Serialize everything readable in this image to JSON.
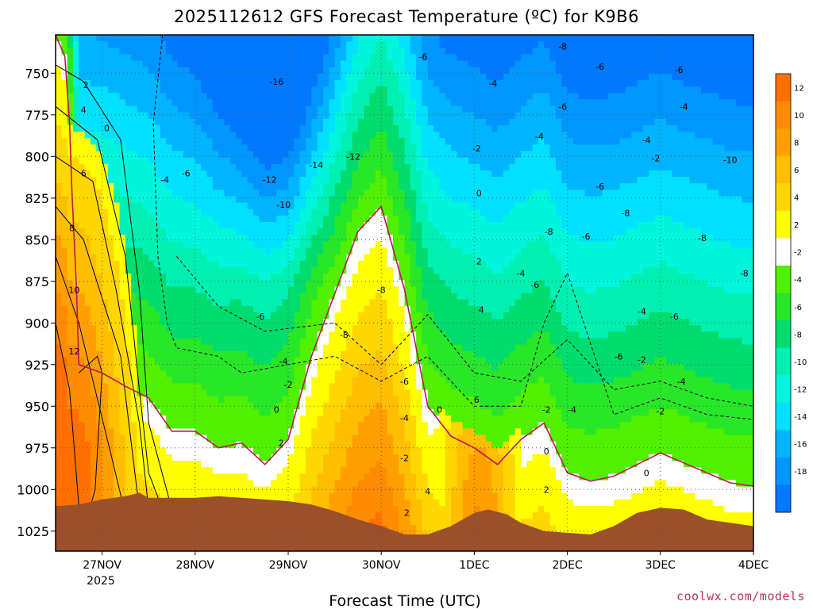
{
  "chart_data": {
    "type": "heatmap",
    "title": "2025112612 GFS Forecast Temperature (ºC) for K9B6",
    "xlabel": "Forecast Time (UTC)",
    "ylabel": "",
    "credit": "coolwx.com/models",
    "x_ticks": [
      "27NOV",
      "28NOV",
      "29NOV",
      "30NOV",
      "1DEC",
      "2DEC",
      "3DEC",
      "4DEC"
    ],
    "x_year_label": "2025",
    "y_ticks": [
      750,
      775,
      800,
      825,
      850,
      875,
      900,
      925,
      950,
      975,
      1000,
      1025
    ],
    "ylim": [
      1037,
      727
    ],
    "xlim": [
      "26NOV12",
      "4DEC00"
    ],
    "y_units": "hPa",
    "y_inverted": true,
    "grid": true,
    "colorbar": {
      "placement": "right",
      "ticks": [
        12,
        10,
        8,
        6,
        4,
        2,
        -2,
        -4,
        -6,
        -8,
        -10,
        -12,
        -14,
        -16,
        -18
      ],
      "bins": [
        {
          "range": [
            12,
            14
          ],
          "color": "#ff7000"
        },
        {
          "range": [
            10,
            12
          ],
          "color": "#ff8c00"
        },
        {
          "range": [
            8,
            10
          ],
          "color": "#ffa000"
        },
        {
          "range": [
            6,
            8
          ],
          "color": "#ffbe00"
        },
        {
          "range": [
            4,
            6
          ],
          "color": "#ffd700"
        },
        {
          "range": [
            2,
            4
          ],
          "color": "#ffff00"
        },
        {
          "range": [
            -2,
            2
          ],
          "color": "#ffffff"
        },
        {
          "range": [
            -4,
            -2
          ],
          "color": "#50f000"
        },
        {
          "range": [
            -6,
            -4
          ],
          "color": "#28e628"
        },
        {
          "range": [
            -8,
            -6
          ],
          "color": "#00dc6e"
        },
        {
          "range": [
            -10,
            -8
          ],
          "color": "#00f0b4"
        },
        {
          "range": [
            -12,
            -10
          ],
          "color": "#00f5dc"
        },
        {
          "range": [
            -14,
            -12
          ],
          "color": "#00e1ff"
        },
        {
          "range": [
            -16,
            -14
          ],
          "color": "#00b4ff"
        },
        {
          "range": [
            -18,
            -16
          ],
          "color": "#0096ff"
        },
        {
          "range": [
            -20,
            -18
          ],
          "color": "#0078ff"
        }
      ]
    },
    "terrain_color": "#9b4f2b",
    "zero_contour_color": "#c0145a",
    "zero_line_pressure": [
      [
        0,
        727
      ],
      [
        0.2,
        740
      ],
      [
        0.3,
        780
      ],
      [
        0.35,
        820
      ],
      [
        0.45,
        880
      ],
      [
        0.5,
        925
      ],
      [
        1,
        930
      ],
      [
        1.5,
        938
      ],
      [
        2,
        945
      ],
      [
        2.5,
        965
      ],
      [
        3,
        965
      ],
      [
        3.5,
        975
      ],
      [
        4,
        972
      ],
      [
        4.5,
        985
      ],
      [
        5,
        970
      ],
      [
        5.5,
        920
      ],
      [
        6.5,
        845
      ],
      [
        7.0,
        830
      ],
      [
        7.5,
        880
      ],
      [
        8,
        950
      ],
      [
        8.5,
        968
      ],
      [
        9,
        975
      ],
      [
        9.5,
        985
      ],
      [
        10,
        970
      ],
      [
        10.5,
        960
      ],
      [
        11,
        990
      ],
      [
        11.5,
        995
      ],
      [
        12,
        992
      ],
      [
        12.5,
        985
      ],
      [
        13,
        978
      ],
      [
        14,
        990
      ],
      [
        14.5,
        996
      ],
      [
        15,
        998
      ]
    ],
    "contour_lines": [
      {
        "value": 12,
        "points": [
          [
            0,
            900
          ],
          [
            0.3,
            940
          ],
          [
            0.5,
            1010
          ],
          [
            0.7,
            1015
          ],
          [
            0.85,
            1000
          ],
          [
            1.0,
            930
          ],
          [
            0.9,
            920
          ],
          [
            0.5,
            930
          ]
        ]
      },
      {
        "value": 10,
        "points": [
          [
            0,
            860
          ],
          [
            0.5,
            900
          ],
          [
            1.2,
            980
          ],
          [
            1.5,
            1015
          ]
        ]
      },
      {
        "value": 8,
        "points": [
          [
            0,
            830
          ],
          [
            0.6,
            850
          ],
          [
            1.4,
            920
          ],
          [
            1.8,
            1012
          ]
        ]
      },
      {
        "value": 6,
        "points": [
          [
            0,
            800
          ],
          [
            0.8,
            815
          ],
          [
            1.3,
            880
          ],
          [
            1.8,
            960
          ],
          [
            2.0,
            1012
          ]
        ]
      },
      {
        "value": 4,
        "points": [
          [
            0,
            770
          ],
          [
            0.9,
            790
          ],
          [
            1.5,
            860
          ],
          [
            1.8,
            940
          ],
          [
            2.0,
            990
          ],
          [
            2.3,
            1012
          ]
        ]
      },
      {
        "value": 2,
        "points": [
          [
            0,
            745
          ],
          [
            0.6,
            755
          ],
          [
            1.4,
            790
          ],
          [
            1.8,
            880
          ],
          [
            2.0,
            960
          ],
          [
            2.5,
            1012
          ]
        ]
      },
      {
        "value": -2,
        "points": [
          [
            2.3,
            727
          ],
          [
            2.1,
            780
          ],
          [
            2.2,
            860
          ],
          [
            2.4,
            900
          ],
          [
            2.6,
            915
          ],
          [
            3.5,
            920
          ],
          [
            4,
            930
          ],
          [
            5,
            925
          ],
          [
            6,
            920
          ],
          [
            7,
            935
          ],
          [
            8,
            920
          ],
          [
            9,
            950
          ],
          [
            10,
            950
          ],
          [
            10.5,
            900
          ],
          [
            11,
            870
          ],
          [
            12,
            955
          ],
          [
            13,
            945
          ],
          [
            14,
            955
          ],
          [
            15,
            958
          ]
        ]
      },
      {
        "value": -4,
        "points": [
          [
            2.6,
            860
          ],
          [
            3.5,
            890
          ],
          [
            4.5,
            905
          ],
          [
            6,
            900
          ],
          [
            7,
            925
          ],
          [
            8,
            895
          ],
          [
            9,
            930
          ],
          [
            10,
            935
          ],
          [
            11,
            910
          ],
          [
            12,
            940
          ],
          [
            13,
            935
          ],
          [
            14,
            945
          ],
          [
            15,
            950
          ]
        ]
      }
    ],
    "contour_labels": [
      {
        "text": "2",
        "x": 0.65,
        "p": 757
      },
      {
        "text": "4",
        "x": 0.6,
        "p": 772
      },
      {
        "text": "0",
        "x": 1.1,
        "p": 783
      },
      {
        "text": "6",
        "x": 0.6,
        "p": 810
      },
      {
        "text": "8",
        "x": 0.35,
        "p": 843
      },
      {
        "text": "10",
        "x": 0.4,
        "p": 880
      },
      {
        "text": "12",
        "x": 0.4,
        "p": 917
      },
      {
        "text": "-4",
        "x": 2.35,
        "p": 814
      },
      {
        "text": "-6",
        "x": 2.8,
        "p": 810
      },
      {
        "text": "-16",
        "x": 4.75,
        "p": 755
      },
      {
        "text": "-14",
        "x": 5.6,
        "p": 805
      },
      {
        "text": "-12",
        "x": 4.6,
        "p": 814
      },
      {
        "text": "-12",
        "x": 6.4,
        "p": 800
      },
      {
        "text": "-10",
        "x": 4.9,
        "p": 829
      },
      {
        "text": "-6",
        "x": 7.9,
        "p": 740
      },
      {
        "text": "-8",
        "x": 10.9,
        "p": 734
      },
      {
        "text": "-6",
        "x": 11.7,
        "p": 746
      },
      {
        "text": "-6",
        "x": 13.4,
        "p": 748
      },
      {
        "text": "-4",
        "x": 9.4,
        "p": 756
      },
      {
        "text": "-6",
        "x": 10.9,
        "p": 770
      },
      {
        "text": "-4",
        "x": 13.5,
        "p": 770
      },
      {
        "text": "-2",
        "x": 9.05,
        "p": 795
      },
      {
        "text": "-4",
        "x": 10.4,
        "p": 788
      },
      {
        "text": "-4",
        "x": 12.7,
        "p": 790
      },
      {
        "text": "-2",
        "x": 12.9,
        "p": 801
      },
      {
        "text": "-10",
        "x": 14.5,
        "p": 802
      },
      {
        "text": "0",
        "x": 9.1,
        "p": 822
      },
      {
        "text": "-6",
        "x": 11.7,
        "p": 818
      },
      {
        "text": "-8",
        "x": 12.25,
        "p": 834
      },
      {
        "text": "-8",
        "x": 10.6,
        "p": 845
      },
      {
        "text": "-6",
        "x": 11.4,
        "p": 848
      },
      {
        "text": "-8",
        "x": 13.9,
        "p": 849
      },
      {
        "text": "2",
        "x": 9.1,
        "p": 863
      },
      {
        "text": "-4",
        "x": 10.0,
        "p": 870
      },
      {
        "text": "-6",
        "x": 10.3,
        "p": 877
      },
      {
        "text": "-8",
        "x": 14.8,
        "p": 870
      },
      {
        "text": "-8",
        "x": 7.0,
        "p": 880
      },
      {
        "text": "4",
        "x": 9.15,
        "p": 892
      },
      {
        "text": "-6",
        "x": 4.4,
        "p": 896
      },
      {
        "text": "-8",
        "x": 6.2,
        "p": 907
      },
      {
        "text": "-4",
        "x": 12.6,
        "p": 893
      },
      {
        "text": "-6",
        "x": 13.3,
        "p": 896
      },
      {
        "text": "-6",
        "x": 12.1,
        "p": 920
      },
      {
        "text": "-2",
        "x": 12.6,
        "p": 922
      },
      {
        "text": "-4",
        "x": 4.9,
        "p": 923
      },
      {
        "text": "-6",
        "x": 7.5,
        "p": 935
      },
      {
        "text": "-4",
        "x": 13.45,
        "p": 935
      },
      {
        "text": "-2",
        "x": 5.0,
        "p": 937
      },
      {
        "text": "6",
        "x": 9.05,
        "p": 946
      },
      {
        "text": "-4",
        "x": 7.5,
        "p": 957
      },
      {
        "text": "0",
        "x": 4.75,
        "p": 952
      },
      {
        "text": "0",
        "x": 8.25,
        "p": 952
      },
      {
        "text": "-2",
        "x": 10.55,
        "p": 952
      },
      {
        "text": "-4",
        "x": 11.1,
        "p": 952
      },
      {
        "text": "-2",
        "x": 13.0,
        "p": 953
      },
      {
        "text": "2",
        "x": 4.85,
        "p": 972
      },
      {
        "text": "-2",
        "x": 7.5,
        "p": 981
      },
      {
        "text": "0",
        "x": 10.55,
        "p": 977
      },
      {
        "text": "0",
        "x": 12.7,
        "p": 990
      },
      {
        "text": "4",
        "x": 8.0,
        "p": 1001
      },
      {
        "text": "2",
        "x": 10.55,
        "p": 1000
      },
      {
        "text": "2",
        "x": 7.55,
        "p": 1014
      }
    ],
    "terrain_pressure": [
      [
        0,
        1010
      ],
      [
        0.5,
        1009
      ],
      [
        1,
        1006
      ],
      [
        1.5,
        1004
      ],
      [
        1.8,
        1002
      ],
      [
        2,
        1005
      ],
      [
        3,
        1005
      ],
      [
        3.5,
        1004
      ],
      [
        4,
        1005
      ],
      [
        5,
        1007
      ],
      [
        5.5,
        1009
      ],
      [
        6,
        1013
      ],
      [
        6.5,
        1018
      ],
      [
        7,
        1022
      ],
      [
        7.5,
        1027
      ],
      [
        8,
        1027
      ],
      [
        8.5,
        1022
      ],
      [
        9,
        1014
      ],
      [
        9.3,
        1012
      ],
      [
        9.7,
        1015
      ],
      [
        10,
        1020
      ],
      [
        10.5,
        1025
      ],
      [
        11,
        1026
      ],
      [
        11.5,
        1027
      ],
      [
        12,
        1022
      ],
      [
        12.5,
        1014
      ],
      [
        13,
        1011
      ],
      [
        13.5,
        1012
      ],
      [
        14,
        1018
      ],
      [
        15,
        1022
      ]
    ],
    "x_domain": [
      0,
      15
    ],
    "notes_units": "x in 12-hour forecast steps from 26NOV 12UTC; y is pressure in hPa"
  }
}
